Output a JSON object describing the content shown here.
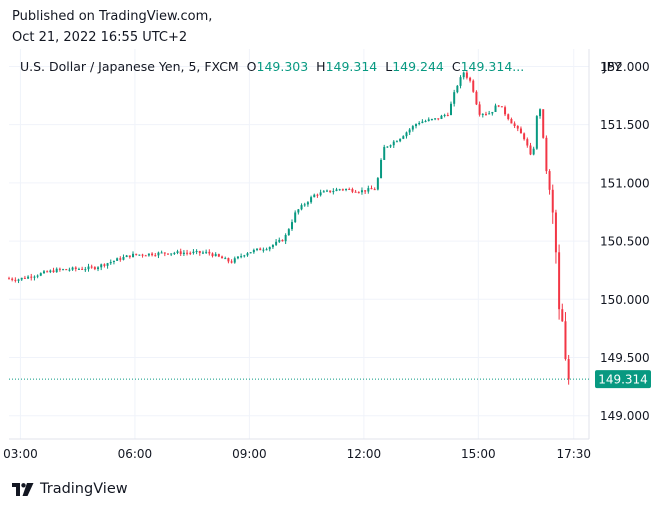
{
  "published": {
    "line1": "Published on TradingView.com,",
    "line2": "Oct 21, 2022 16:55 UTC+2"
  },
  "legend": {
    "symbol": "U.S. Dollar / Japanese Yen, 5, FXCM",
    "o_label": "O",
    "o_value": "149.303",
    "h_label": "H",
    "h_value": "149.314",
    "l_label": "L",
    "l_value": "149.244",
    "c_label": "C",
    "c_value": "149.314..."
  },
  "currency": "JPY",
  "footer": {
    "brand": "TradingView",
    "logo_icon": "tradingview-logo-icon"
  },
  "colors": {
    "up": "#089981",
    "down": "#f23645",
    "grid": "#f0f3fa",
    "text": "#131722"
  },
  "chart_data": {
    "type": "candlestick",
    "x_ticks": [
      "03:00",
      "06:00",
      "09:00",
      "12:00",
      "15:00",
      "17:30"
    ],
    "x_tick_hours": [
      3,
      6,
      9,
      12,
      15,
      17.5
    ],
    "x_range_hours": [
      2.7,
      17.9
    ],
    "y_ticks": [
      "152.000",
      "151.500",
      "151.000",
      "150.500",
      "150.000",
      "149.500",
      "149.000"
    ],
    "y_tick_values": [
      152.0,
      151.5,
      151.0,
      150.5,
      150.0,
      149.5,
      149.0
    ],
    "ylim": [
      148.8,
      152.15
    ],
    "last_price": {
      "label": "149.314",
      "value": 149.314
    },
    "anchors_time_hours": [
      2.7,
      3.0,
      4.0,
      5.0,
      5.7,
      6.0,
      7.0,
      8.0,
      8.6,
      9.0,
      9.6,
      10.0,
      10.3,
      10.8,
      11.5,
      12.0,
      12.4,
      12.6,
      13.0,
      13.5,
      14.0,
      14.3,
      14.5,
      14.7,
      14.9,
      15.1,
      15.4,
      15.6,
      16.0,
      16.3,
      16.5,
      16.6,
      16.7,
      16.9,
      17.0,
      17.1,
      17.2,
      17.3,
      17.4
    ],
    "anchors_price": [
      150.18,
      150.17,
      150.25,
      150.27,
      150.35,
      150.38,
      150.4,
      150.4,
      150.32,
      150.4,
      150.45,
      150.52,
      150.75,
      150.9,
      150.95,
      150.93,
      150.95,
      151.3,
      151.38,
      151.52,
      151.55,
      151.6,
      151.82,
      151.95,
      151.86,
      151.6,
      151.6,
      151.68,
      151.5,
      151.38,
      151.18,
      151.55,
      151.64,
      151.0,
      150.85,
      150.5,
      149.9,
      149.78,
      149.314
    ]
  }
}
